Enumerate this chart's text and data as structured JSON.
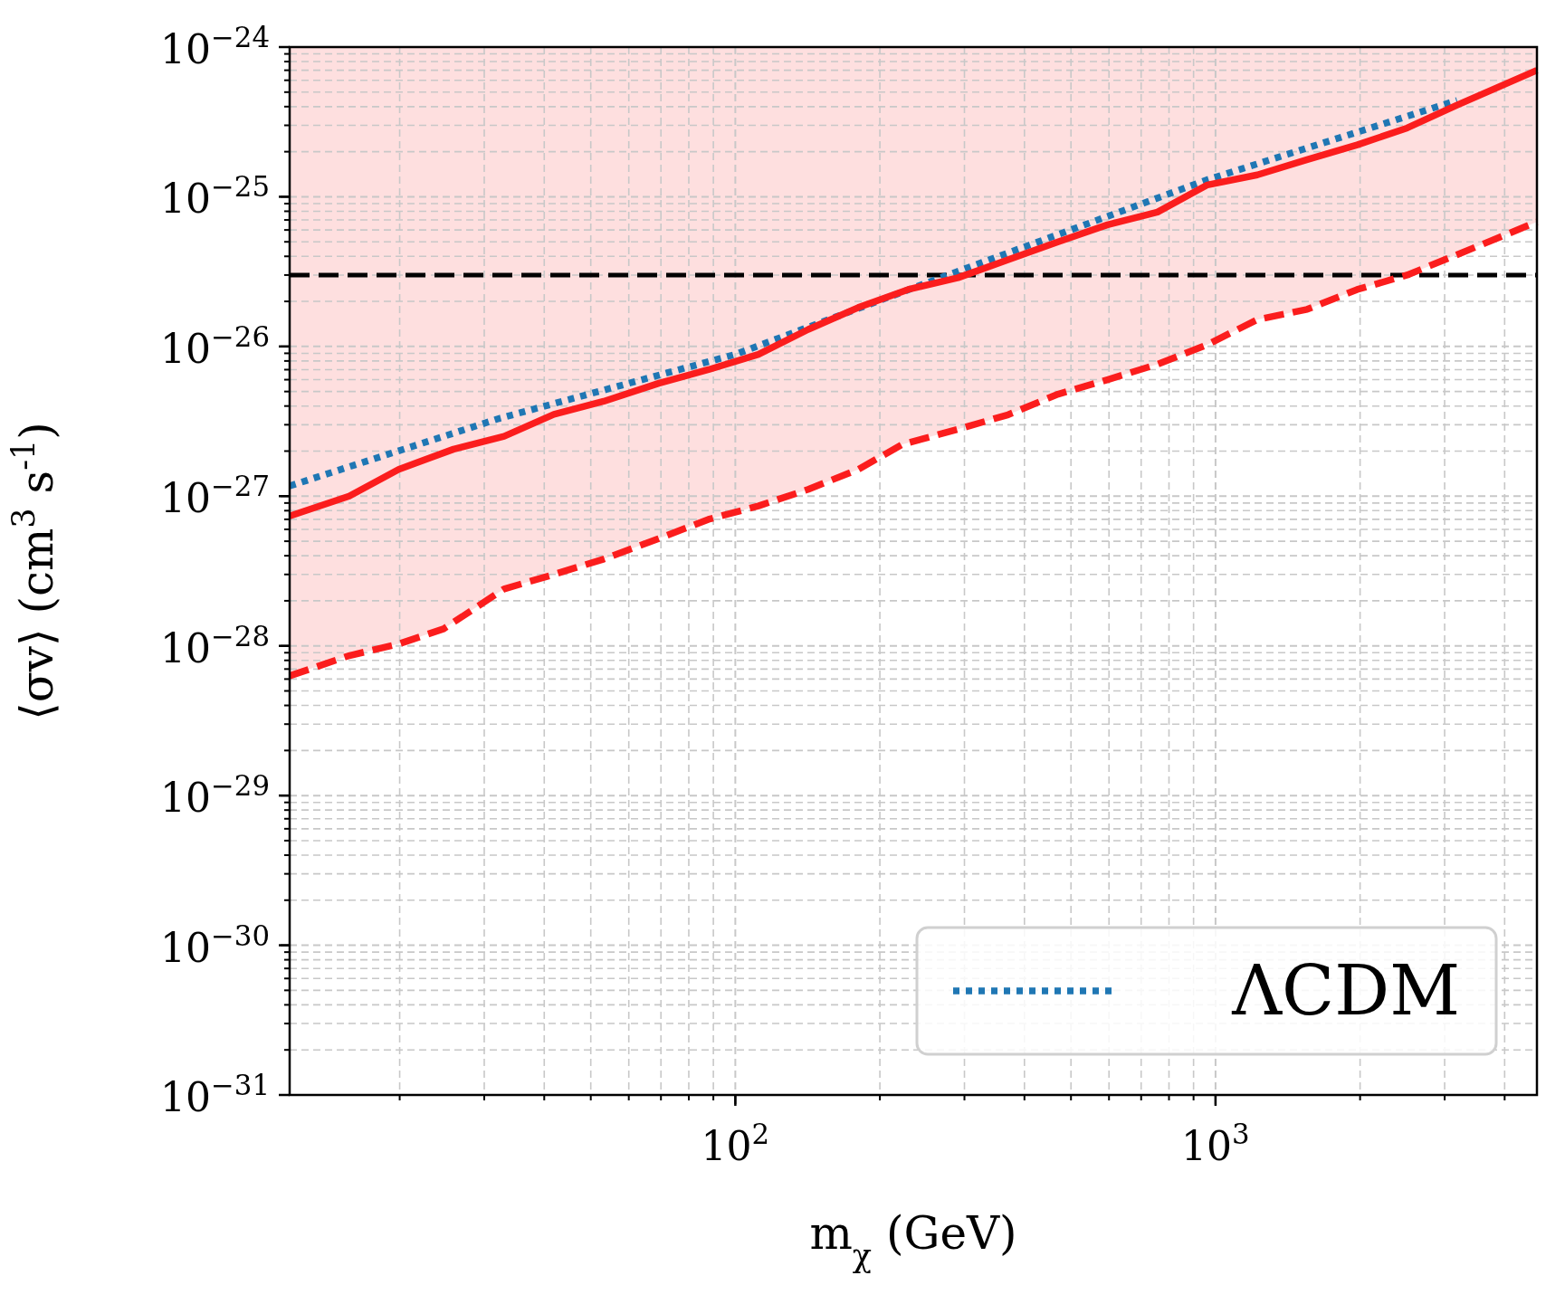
{
  "chart_data": {
    "type": "line",
    "xlabel": "m$_{χ}$ (GeV)",
    "ylabel": "⟨σv⟩ (cm$^{3}$ s$^{-1}$)",
    "log": "xy",
    "grid": true,
    "legend": "bottom right",
    "xlim": [
      11.8,
      4670
    ],
    "ylim": [
      1e-31,
      1e-24
    ],
    "xticks": [
      {
        "value": 100,
        "label": "10$^{2}$"
      },
      {
        "value": 1000,
        "label": "10$^{3}$"
      }
    ],
    "yticks": [
      {
        "value": 1e-31,
        "label": "10$^{−31}$"
      },
      {
        "value": 1e-30,
        "label": "10$^{−30}$"
      },
      {
        "value": 1e-29,
        "label": "10$^{−29}$"
      },
      {
        "value": 1e-28,
        "label": "10$^{−28}$"
      },
      {
        "value": 1e-27,
        "label": "10$^{−27}$"
      },
      {
        "value": 1e-26,
        "label": "10$^{−26}$"
      },
      {
        "value": 1e-25,
        "label": "10$^{−25}$"
      },
      {
        "value": 1e-24,
        "label": "10$^{−24}$"
      }
    ],
    "ref_lines": [
      {
        "axis": "y",
        "value": 3e-26,
        "color": "#000000",
        "line_style": "dashed"
      }
    ],
    "series": [
      {
        "color": "#fb1d1d",
        "line_style": "dashed",
        "x": [
          11.8,
          15.7,
          19.9,
          24.7,
          33.0,
          41.9,
          53.2,
          69.2,
          87.9,
          111.7,
          141.9,
          180.3,
          223,
          291,
          370,
          470,
          596,
          757,
          962,
          1222,
          1552,
          1972,
          2506,
          3184,
          4670
        ],
        "values": [
          6.3e-29,
          8.6e-29,
          1.03e-28,
          1.3e-28,
          2.4e-28,
          3e-28,
          3.8e-28,
          5.2e-28,
          7e-28,
          8.6e-28,
          1.11e-27,
          1.51e-27,
          2.22e-27,
          2.8e-27,
          3.5e-27,
          4.8e-27,
          6e-27,
          7.6e-27,
          1.03e-26,
          1.51e-26,
          1.77e-26,
          2.4e-26,
          3e-26,
          4.1e-26,
          6.8e-26
        ],
        "lower": [
          6.3e-29,
          8.6e-29,
          1.03e-28,
          1.3e-28,
          2.4e-28,
          3e-28,
          3.8e-28,
          5.2e-28,
          7e-28,
          8.6e-28,
          1.11e-27,
          1.51e-27,
          2.22e-27,
          2.8e-27,
          3.5e-27,
          4.8e-27,
          6e-27,
          7.6e-27,
          1.03e-26,
          1.51e-26,
          1.77e-26,
          2.4e-26,
          3e-26,
          4.1e-26,
          6.8e-26
        ],
        "upper": [
          1e-24,
          1e-24,
          1e-24,
          1e-24,
          1e-24,
          1e-24,
          1e-24,
          1e-24,
          1e-24,
          1e-24,
          1e-24,
          1e-24,
          1e-24,
          1e-24,
          1e-24,
          1e-24,
          1e-24,
          1e-24,
          1e-24,
          1e-24,
          1e-24,
          1e-24,
          1e-24,
          1e-24,
          1e-24
        ]
      },
      {
        "color": "#1f77b4",
        "line_style": "dotted",
        "name": "ΛCDM",
        "x": [
          11.8,
          32.2,
          100,
          277,
          962,
          3184
        ],
        "values": [
          1.17e-27,
          3.3e-27,
          8.85e-27,
          3e-26,
          1.3e-25,
          4.4e-25
        ]
      },
      {
        "color": "#fb1d1d",
        "line_style": "solid",
        "x": [
          11.8,
          15.7,
          19.9,
          25.9,
          33.0,
          41.9,
          53.2,
          69.2,
          87.9,
          111.7,
          141.9,
          180.3,
          229,
          291,
          370,
          470,
          596,
          757,
          962,
          1222,
          1552,
          1972,
          2506,
          3184,
          4670
        ],
        "values": [
          7.36e-28,
          1e-27,
          1.51e-27,
          2.06e-27,
          2.51e-27,
          3.52e-27,
          4.3e-27,
          5.67e-27,
          7e-27,
          8.85e-27,
          1.3e-26,
          1.82e-26,
          2.4e-26,
          2.88e-26,
          3.8e-26,
          5e-26,
          6.5e-26,
          7.9e-26,
          1.2e-25,
          1.4e-25,
          1.77e-25,
          2.22e-25,
          2.88e-25,
          4.1e-25,
          7e-25
        ]
      }
    ]
  }
}
